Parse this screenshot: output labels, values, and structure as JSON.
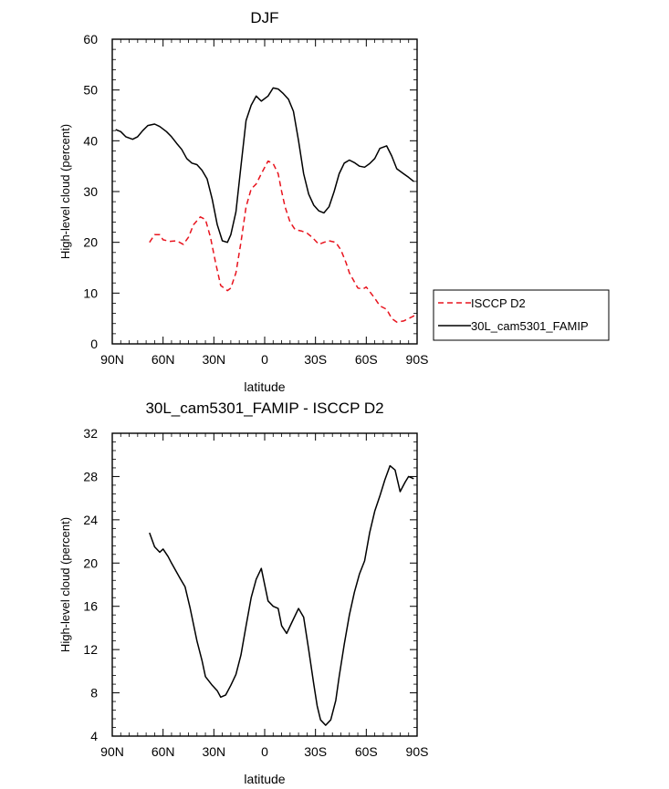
{
  "chart_data": [
    {
      "type": "line",
      "title": "DJF",
      "xlabel": "latitude",
      "ylabel": "High-level cloud (percent)",
      "xlim": [
        90,
        -90
      ],
      "ylim": [
        0,
        60
      ],
      "x_ticks": [
        90,
        60,
        30,
        0,
        -30,
        -60,
        -90
      ],
      "x_tick_labels": [
        "90N",
        "60N",
        "30N",
        "0",
        "30S",
        "60S",
        "90S"
      ],
      "y_ticks": [
        0,
        10,
        20,
        30,
        40,
        50,
        60
      ],
      "grid": false,
      "legend": {
        "placement": "right-outside"
      },
      "series": [
        {
          "name": "ISCCP D2",
          "color": "#e8141e",
          "dash": "dashed",
          "x": [
            68,
            65,
            62,
            60,
            56,
            52,
            48,
            45,
            42,
            38,
            35,
            32,
            29,
            26,
            22,
            20,
            17,
            14,
            11,
            8,
            5,
            2,
            -2,
            -5,
            -8,
            -10,
            -12,
            -15,
            -18,
            -22,
            -25,
            -28,
            -32,
            -35,
            -38,
            -42,
            -45,
            -48,
            -50,
            -55,
            -58,
            -60,
            -65,
            -68,
            -72,
            -75,
            -78,
            -82,
            -85,
            -88,
            -90
          ],
          "y": [
            20,
            21.5,
            21.5,
            20.5,
            20.2,
            20.3,
            19.6,
            21,
            23.5,
            25,
            24.5,
            21,
            16,
            11.5,
            10.5,
            11,
            14,
            20,
            27,
            30.5,
            31.5,
            33.5,
            36,
            35.5,
            33.5,
            30,
            27,
            24,
            22.5,
            22.2,
            21.8,
            21,
            19.6,
            20,
            20.3,
            20,
            18.5,
            16,
            14,
            11,
            10.8,
            11.2,
            9,
            7.5,
            6.8,
            5,
            4.3,
            4.5,
            5,
            5.5,
            5.6
          ]
        },
        {
          "name": "30L_cam5301_FAMIP",
          "color": "#000000",
          "dash": "solid",
          "x": [
            88,
            85,
            82,
            78,
            75,
            72,
            69,
            65,
            62,
            58,
            55,
            52,
            49,
            46,
            43,
            40,
            37,
            34,
            31,
            28,
            25,
            22,
            20,
            17,
            14,
            11,
            8,
            5,
            2,
            -2,
            -5,
            -8,
            -11,
            -14,
            -17,
            -20,
            -23,
            -26,
            -29,
            -32,
            -35,
            -38,
            -41,
            -44,
            -47,
            -50,
            -53,
            -56,
            -59,
            -62,
            -65,
            -68,
            -72,
            -75,
            -78,
            -82,
            -85,
            -88
          ],
          "y": [
            42.2,
            41.8,
            40.8,
            40.3,
            40.8,
            42,
            43,
            43.3,
            42.8,
            41.8,
            40.8,
            39.5,
            38.3,
            36.5,
            35.6,
            35.3,
            34.2,
            32.5,
            28.5,
            23.5,
            20.3,
            20,
            21.5,
            26,
            35,
            44,
            47,
            48.8,
            47.8,
            48.8,
            50.4,
            50.2,
            49.3,
            48.2,
            45.8,
            40,
            33.5,
            29.5,
            27.3,
            26.2,
            25.8,
            27,
            30,
            33.5,
            35.6,
            36.2,
            35.7,
            35,
            34.8,
            35.5,
            36.5,
            38.5,
            39,
            37,
            34.5,
            33.5,
            32.8,
            32
          ]
        }
      ]
    },
    {
      "type": "line",
      "title": "30L_cam5301_FAMIP - ISCCP D2",
      "xlabel": "latitude",
      "ylabel": "High-level cloud (percent)",
      "xlim": [
        90,
        -90
      ],
      "ylim": [
        4,
        32
      ],
      "x_ticks": [
        90,
        60,
        30,
        0,
        -30,
        -60,
        -90
      ],
      "x_tick_labels": [
        "90N",
        "60N",
        "30N",
        "0",
        "30S",
        "60S",
        "90S"
      ],
      "y_ticks": [
        4,
        8,
        12,
        16,
        20,
        24,
        28,
        32
      ],
      "grid": false,
      "series": [
        {
          "color": "#000000",
          "dash": "solid",
          "x": [
            68,
            65,
            62,
            60,
            57,
            55,
            50,
            47,
            44,
            40,
            37,
            35,
            31,
            28,
            26,
            23,
            20,
            17,
            14,
            11,
            8,
            5,
            2,
            -2,
            -5,
            -8,
            -10,
            -13,
            -16,
            -20,
            -23,
            -26,
            -29,
            -31,
            -33,
            -36,
            -39,
            -42,
            -44,
            -47,
            -50,
            -53,
            -56,
            -59,
            -62,
            -65,
            -68,
            -71,
            -74,
            -77,
            -80,
            -83,
            -85,
            -88
          ],
          "y": [
            22.8,
            21.5,
            21,
            21.3,
            20.6,
            20,
            18.6,
            17.8,
            15.8,
            12.8,
            11,
            9.5,
            8.7,
            8.2,
            7.6,
            7.8,
            8.7,
            9.7,
            11.5,
            14.2,
            16.8,
            18.5,
            19.5,
            16.5,
            16,
            15.8,
            14.2,
            13.5,
            14.5,
            15.8,
            15,
            12,
            8.8,
            6.8,
            5.5,
            5,
            5.5,
            7.3,
            9.5,
            12.5,
            15.2,
            17.3,
            19,
            20.2,
            22.8,
            24.8,
            26.2,
            27.7,
            29,
            28.6,
            26.6,
            27.5,
            28,
            27.8
          ]
        }
      ]
    }
  ]
}
